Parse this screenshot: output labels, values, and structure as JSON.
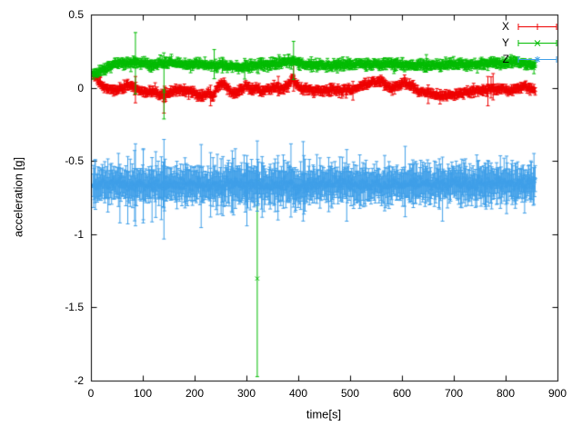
{
  "chart_data": {
    "type": "line",
    "subtype": "errorbars",
    "title": "",
    "xlabel": "time[s]",
    "ylabel": "acceleration [g]",
    "xlim": [
      0,
      900
    ],
    "ylim": [
      -2,
      0.5
    ],
    "grid": false,
    "legend_position": "top-right",
    "axis_color": "#000000",
    "background_color": "#ffffff",
    "x_ticks": [
      0,
      100,
      200,
      300,
      400,
      500,
      600,
      700,
      800,
      900
    ],
    "x_tick_labels": [
      "0",
      "100",
      "200",
      "300",
      "400",
      "500",
      "600",
      "700",
      "800",
      "900"
    ],
    "y_ticks": [
      0.5,
      0,
      -0.5,
      -1,
      -1.5,
      -2
    ],
    "y_tick_labels": [
      "0.5",
      "0",
      "-0.5",
      "-1",
      "-1.5",
      "-2"
    ],
    "t_start": 3,
    "t_end": 857,
    "sample_step": 1.2,
    "series": [
      {
        "name": "X",
        "color": "#ee0000",
        "marker": "plus",
        "noise_sd": 0.009,
        "err_base": 0.016,
        "err_spread": 0.01,
        "big_p": 0.02,
        "big_scale": 0.05,
        "anchors": [
          [
            3,
            0.09
          ],
          [
            10,
            0.07
          ],
          [
            18,
            0.02
          ],
          [
            30,
            0.0
          ],
          [
            45,
            -0.01
          ],
          [
            60,
            0.0
          ],
          [
            75,
            0.02
          ],
          [
            90,
            -0.01
          ],
          [
            105,
            -0.03
          ],
          [
            120,
            -0.02
          ],
          [
            135,
            -0.05
          ],
          [
            150,
            -0.03
          ],
          [
            165,
            -0.01
          ],
          [
            185,
            -0.02
          ],
          [
            200,
            -0.03
          ],
          [
            215,
            -0.06
          ],
          [
            225,
            -0.03
          ],
          [
            235,
            -0.06
          ],
          [
            245,
            0.02
          ],
          [
            255,
            0.03
          ],
          [
            268,
            -0.02
          ],
          [
            278,
            -0.04
          ],
          [
            288,
            0.0
          ],
          [
            298,
            0.02
          ],
          [
            308,
            -0.01
          ],
          [
            318,
            0.0
          ],
          [
            328,
            -0.02
          ],
          [
            340,
            -0.01
          ],
          [
            355,
            0.0
          ],
          [
            368,
            -0.01
          ],
          [
            380,
            0.02
          ],
          [
            388,
            0.07
          ],
          [
            395,
            0.03
          ],
          [
            405,
            0.0
          ],
          [
            425,
            -0.01
          ],
          [
            445,
            -0.02
          ],
          [
            465,
            -0.01
          ],
          [
            485,
            -0.02
          ],
          [
            505,
            -0.01
          ],
          [
            520,
            0.02
          ],
          [
            535,
            0.03
          ],
          [
            550,
            0.045
          ],
          [
            560,
            0.05
          ],
          [
            570,
            0.02
          ],
          [
            580,
            0.0
          ],
          [
            592,
            0.02
          ],
          [
            605,
            0.04
          ],
          [
            615,
            0.02
          ],
          [
            630,
            -0.02
          ],
          [
            648,
            -0.03
          ],
          [
            665,
            -0.045
          ],
          [
            680,
            -0.05
          ],
          [
            695,
            -0.045
          ],
          [
            710,
            -0.04
          ],
          [
            725,
            -0.03
          ],
          [
            740,
            -0.02
          ],
          [
            755,
            -0.01
          ],
          [
            768,
            0.0
          ],
          [
            782,
            -0.01
          ],
          [
            795,
            0.0
          ],
          [
            808,
            -0.02
          ],
          [
            820,
            0.0
          ],
          [
            832,
            0.01
          ],
          [
            845,
            0.0
          ],
          [
            857,
            -0.01
          ]
        ],
        "outliers": [
          {
            "t": 85,
            "y": -0.01,
            "e": 0.09
          },
          {
            "t": 140,
            "y": -0.09,
            "e": 0.08
          },
          {
            "t": 230,
            "y": -0.05,
            "e": 0.07
          },
          {
            "t": 390,
            "y": 0.08,
            "e": 0.1
          },
          {
            "t": 765,
            "y": -0.02,
            "e": 0.1
          },
          {
            "t": 775,
            "y": 0.01,
            "e": 0.09
          }
        ]
      },
      {
        "name": "Y",
        "color": "#00bb00",
        "marker": "cross",
        "noise_sd": 0.009,
        "err_base": 0.016,
        "err_spread": 0.01,
        "big_p": 0.015,
        "big_scale": 0.06,
        "anchors": [
          [
            3,
            0.1
          ],
          [
            12,
            0.11
          ],
          [
            22,
            0.13
          ],
          [
            35,
            0.15
          ],
          [
            50,
            0.17
          ],
          [
            70,
            0.17
          ],
          [
            90,
            0.18
          ],
          [
            110,
            0.16
          ],
          [
            130,
            0.17
          ],
          [
            150,
            0.18
          ],
          [
            170,
            0.17
          ],
          [
            190,
            0.16
          ],
          [
            210,
            0.17
          ],
          [
            230,
            0.15
          ],
          [
            250,
            0.16
          ],
          [
            270,
            0.15
          ],
          [
            285,
            0.14
          ],
          [
            300,
            0.15
          ],
          [
            320,
            0.16
          ],
          [
            340,
            0.16
          ],
          [
            360,
            0.17
          ],
          [
            378,
            0.18
          ],
          [
            390,
            0.19
          ],
          [
            400,
            0.17
          ],
          [
            420,
            0.16
          ],
          [
            440,
            0.16
          ],
          [
            460,
            0.15
          ],
          [
            480,
            0.16
          ],
          [
            500,
            0.16
          ],
          [
            520,
            0.17
          ],
          [
            540,
            0.16
          ],
          [
            560,
            0.16
          ],
          [
            580,
            0.17
          ],
          [
            600,
            0.16
          ],
          [
            620,
            0.15
          ],
          [
            640,
            0.16
          ],
          [
            660,
            0.16
          ],
          [
            680,
            0.16
          ],
          [
            700,
            0.17
          ],
          [
            720,
            0.16
          ],
          [
            740,
            0.16
          ],
          [
            760,
            0.17
          ],
          [
            780,
            0.17
          ],
          [
            800,
            0.17
          ],
          [
            815,
            0.18
          ],
          [
            830,
            0.17
          ],
          [
            845,
            0.16
          ],
          [
            857,
            0.15
          ]
        ],
        "outliers": [
          {
            "t": 85,
            "y": 0.17,
            "e": 0.21
          },
          {
            "t": 140,
            "y": -0.02,
            "e": 0.19
          },
          {
            "t": 320,
            "y": -1.3,
            "e": 0.67
          },
          {
            "t": 390,
            "y": 0.19,
            "e": 0.13
          }
        ]
      },
      {
        "name": "Z",
        "color": "#3f9fe8",
        "marker": "asterisk",
        "noise_sd": 0.02,
        "err_base": 0.06,
        "err_spread": 0.045,
        "big_p": 0.06,
        "big_scale": 0.15,
        "anchors": [
          [
            3,
            -0.66
          ],
          [
            40,
            -0.65
          ],
          [
            80,
            -0.67
          ],
          [
            120,
            -0.66
          ],
          [
            160,
            -0.66
          ],
          [
            200,
            -0.66
          ],
          [
            240,
            -0.66
          ],
          [
            280,
            -0.65
          ],
          [
            320,
            -0.66
          ],
          [
            360,
            -0.66
          ],
          [
            400,
            -0.67
          ],
          [
            440,
            -0.66
          ],
          [
            480,
            -0.65
          ],
          [
            520,
            -0.66
          ],
          [
            560,
            -0.66
          ],
          [
            600,
            -0.66
          ],
          [
            640,
            -0.65
          ],
          [
            680,
            -0.65
          ],
          [
            720,
            -0.65
          ],
          [
            760,
            -0.66
          ],
          [
            800,
            -0.65
          ],
          [
            857,
            -0.65
          ]
        ],
        "outliers": [
          {
            "t": 55,
            "y": -0.72,
            "e": 0.2
          },
          {
            "t": 85,
            "y": -0.66,
            "e": 0.28
          },
          {
            "t": 100,
            "y": -0.67,
            "e": 0.25
          },
          {
            "t": 140,
            "y": -0.69,
            "e": 0.34
          },
          {
            "t": 230,
            "y": -0.66,
            "e": 0.22
          },
          {
            "t": 300,
            "y": -0.7,
            "e": 0.24
          },
          {
            "t": 320,
            "y": -0.6,
            "e": 0.24
          },
          {
            "t": 360,
            "y": -0.68,
            "e": 0.22
          },
          {
            "t": 385,
            "y": -0.63,
            "e": 0.25
          },
          {
            "t": 410,
            "y": -0.66,
            "e": 0.2
          },
          {
            "t": 620,
            "y": -0.64,
            "e": 0.15
          },
          {
            "t": 760,
            "y": -0.66,
            "e": 0.15
          }
        ]
      }
    ]
  }
}
